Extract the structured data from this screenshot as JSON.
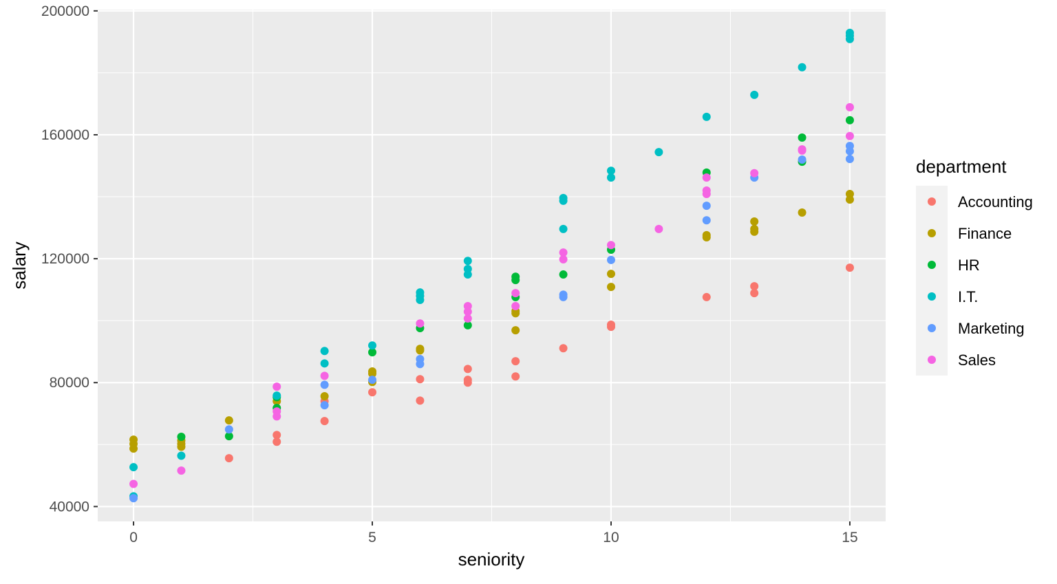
{
  "chart_data": {
    "type": "scatter",
    "title": "",
    "xlabel": "seniority",
    "ylabel": "salary",
    "xlim": [
      -0.75,
      15.75
    ],
    "ylim": [
      35200,
      200400
    ],
    "xticks": [
      0,
      5,
      10,
      15
    ],
    "yticks": [
      40000,
      80000,
      120000,
      160000,
      200000
    ],
    "grid": true,
    "legend": {
      "title": "department",
      "placement": "right"
    },
    "series": [
      {
        "name": "Accounting",
        "color": "#F8766D",
        "points": [
          [
            2,
            55600
          ],
          [
            3,
            63100
          ],
          [
            3,
            60900
          ],
          [
            4,
            74000
          ],
          [
            4,
            67600
          ],
          [
            5,
            76900
          ],
          [
            6,
            81100
          ],
          [
            6,
            74200
          ],
          [
            7,
            84400
          ],
          [
            7,
            80900
          ],
          [
            7,
            80000
          ],
          [
            8,
            86900
          ],
          [
            8,
            82000
          ],
          [
            9,
            91100
          ],
          [
            10,
            98700
          ],
          [
            10,
            98000
          ],
          [
            12,
            107600
          ],
          [
            13,
            111100
          ],
          [
            13,
            108900
          ],
          [
            15,
            117100
          ]
        ]
      },
      {
        "name": "Finance",
        "color": "#B79F00",
        "points": [
          [
            0,
            61600
          ],
          [
            0,
            60200
          ],
          [
            0,
            58700
          ],
          [
            1,
            61300
          ],
          [
            1,
            60200
          ],
          [
            1,
            59300
          ],
          [
            2,
            67800
          ],
          [
            3,
            74000
          ],
          [
            4,
            75600
          ],
          [
            5,
            83600
          ],
          [
            5,
            82900
          ],
          [
            5,
            80200
          ],
          [
            6,
            90900
          ],
          [
            6,
            90400
          ],
          [
            8,
            103100
          ],
          [
            8,
            102400
          ],
          [
            8,
            96900
          ],
          [
            10,
            115100
          ],
          [
            10,
            110900
          ],
          [
            12,
            127600
          ],
          [
            12,
            126900
          ],
          [
            13,
            132000
          ],
          [
            13,
            129600
          ],
          [
            13,
            128700
          ],
          [
            14,
            134900
          ],
          [
            15,
            140900
          ],
          [
            15,
            139100
          ]
        ]
      },
      {
        "name": "HR",
        "color": "#00BA38",
        "points": [
          [
            1,
            62500
          ],
          [
            2,
            62700
          ],
          [
            3,
            75300
          ],
          [
            3,
            71800
          ],
          [
            5,
            89800
          ],
          [
            6,
            97600
          ],
          [
            7,
            98500
          ],
          [
            8,
            114200
          ],
          [
            8,
            113100
          ],
          [
            8,
            107600
          ],
          [
            9,
            114900
          ],
          [
            10,
            122900
          ],
          [
            12,
            147800
          ],
          [
            14,
            159100
          ],
          [
            14,
            151300
          ],
          [
            15,
            164700
          ]
        ]
      },
      {
        "name": "I.T.",
        "color": "#00BFC4",
        "points": [
          [
            0,
            52700
          ],
          [
            0,
            43300
          ],
          [
            1,
            56400
          ],
          [
            3,
            75800
          ],
          [
            4,
            90200
          ],
          [
            4,
            86200
          ],
          [
            5,
            92000
          ],
          [
            6,
            109100
          ],
          [
            6,
            108000
          ],
          [
            6,
            106700
          ],
          [
            7,
            119300
          ],
          [
            7,
            116700
          ],
          [
            7,
            114900
          ],
          [
            9,
            139600
          ],
          [
            9,
            138700
          ],
          [
            9,
            129600
          ],
          [
            10,
            148400
          ],
          [
            10,
            146200
          ],
          [
            11,
            154400
          ],
          [
            12,
            165800
          ],
          [
            13,
            172900
          ],
          [
            14,
            181800
          ],
          [
            15,
            192900
          ],
          [
            15,
            192000
          ],
          [
            15,
            190900
          ]
        ]
      },
      {
        "name": "Marketing",
        "color": "#619CFF",
        "points": [
          [
            0,
            42700
          ],
          [
            2,
            64900
          ],
          [
            4,
            79300
          ],
          [
            4,
            72700
          ],
          [
            5,
            80900
          ],
          [
            6,
            87600
          ],
          [
            6,
            86000
          ],
          [
            9,
            108400
          ],
          [
            9,
            107600
          ],
          [
            10,
            119600
          ],
          [
            12,
            137100
          ],
          [
            12,
            132400
          ],
          [
            13,
            146200
          ],
          [
            14,
            152000
          ],
          [
            15,
            156400
          ],
          [
            15,
            154700
          ],
          [
            15,
            152200
          ]
        ]
      },
      {
        "name": "Sales",
        "color": "#F564E3",
        "points": [
          [
            0,
            47300
          ],
          [
            1,
            51600
          ],
          [
            3,
            78700
          ],
          [
            3,
            70700
          ],
          [
            3,
            69100
          ],
          [
            4,
            82200
          ],
          [
            6,
            99100
          ],
          [
            7,
            104700
          ],
          [
            7,
            102900
          ],
          [
            7,
            100700
          ],
          [
            8,
            108900
          ],
          [
            8,
            104700
          ],
          [
            9,
            122000
          ],
          [
            9,
            119800
          ],
          [
            10,
            124400
          ],
          [
            11,
            129600
          ],
          [
            12,
            146200
          ],
          [
            12,
            142000
          ],
          [
            12,
            140900
          ],
          [
            13,
            147600
          ],
          [
            14,
            155300
          ],
          [
            14,
            154900
          ],
          [
            15,
            168900
          ],
          [
            15,
            159600
          ]
        ]
      }
    ]
  }
}
